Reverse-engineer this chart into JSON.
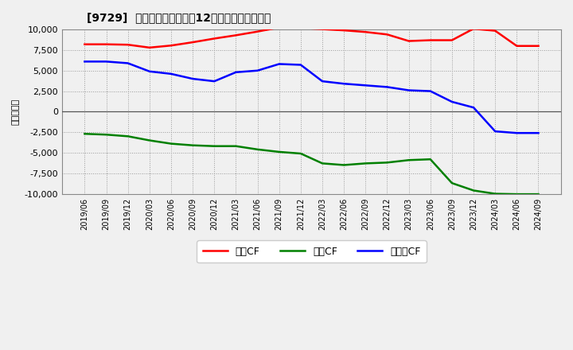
{
  "title": "[9729]  キャッシュフローの12か月移動合計の推移",
  "ylabel": "（百万円）",
  "background_color": "#f0f0f0",
  "plot_background": "#f0f0f0",
  "grid_color": "#aaaaaa",
  "ylim": [
    -10000,
    10000
  ],
  "yticks": [
    -10000,
    -7500,
    -5000,
    -2500,
    0,
    2500,
    5000,
    7500,
    10000
  ],
  "x_labels": [
    "2019/06",
    "2019/09",
    "2019/12",
    "2020/03",
    "2020/06",
    "2020/09",
    "2020/12",
    "2021/03",
    "2021/06",
    "2021/09",
    "2021/12",
    "2022/03",
    "2022/06",
    "2022/09",
    "2022/12",
    "2023/03",
    "2023/06",
    "2023/09",
    "2023/12",
    "2024/03",
    "2024/06",
    "2024/09"
  ],
  "operating_cf": [
    8200,
    8200,
    8150,
    7800,
    8050,
    8450,
    8900,
    9300,
    9750,
    10250,
    10200,
    10050,
    9900,
    9700,
    9400,
    8600,
    8700,
    8700,
    10100,
    9850,
    8000,
    8000
  ],
  "investing_cf": [
    -2700,
    -2800,
    -3000,
    -3500,
    -3900,
    -4100,
    -4200,
    -4200,
    -4600,
    -4900,
    -5100,
    -6300,
    -6500,
    -6300,
    -6200,
    -5900,
    -5800,
    -8700,
    -9600,
    -10000,
    -10050,
    -10050
  ],
  "free_cf": [
    6100,
    6100,
    5900,
    4900,
    4600,
    4000,
    3700,
    4800,
    5000,
    5800,
    5700,
    3700,
    3400,
    3200,
    3000,
    2600,
    2500,
    1200,
    500,
    -2400,
    -2600,
    -2600
  ],
  "line_colors": {
    "operating": "#ff0000",
    "investing": "#008000",
    "free": "#0000ff"
  },
  "legend_labels": [
    "営業CF",
    "投資CF",
    "フリーCF"
  ],
  "line_width": 1.8
}
